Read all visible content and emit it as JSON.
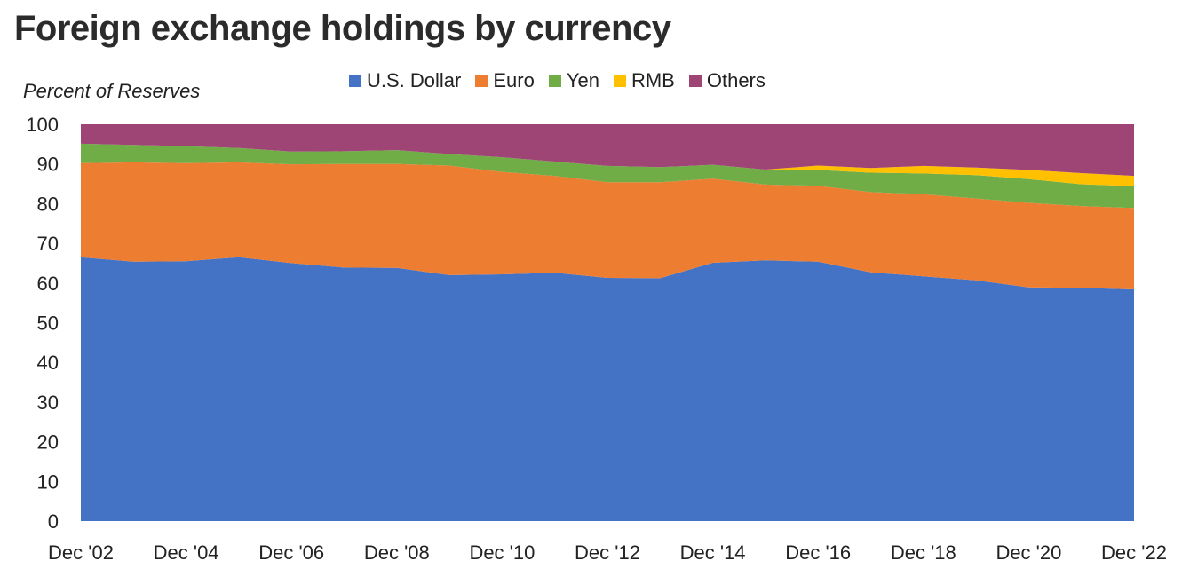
{
  "chart_data": {
    "type": "area",
    "stacked": true,
    "title": "Foreign exchange holdings by currency",
    "ylabel": "Percent of Reserves",
    "xlabel": "",
    "ylim": [
      0,
      100
    ],
    "yticks": [
      "0",
      "10",
      "20",
      "30",
      "40",
      "50",
      "60",
      "70",
      "80",
      "90",
      "100"
    ],
    "xtick_labels": [
      "Dec '02",
      "Dec '04",
      "Dec '06",
      "Dec '08",
      "Dec '10",
      "Dec '12",
      "Dec '14",
      "Dec '16",
      "Dec '18",
      "Dec '20",
      "Dec '22"
    ],
    "x": [
      "Dec '02",
      "Dec '03",
      "Dec '04",
      "Dec '05",
      "Dec '06",
      "Dec '07",
      "Dec '08",
      "Dec '09",
      "Dec '10",
      "Dec '11",
      "Dec '12",
      "Dec '13",
      "Dec '14",
      "Dec '15",
      "Dec '16",
      "Dec '17",
      "Dec '18",
      "Dec '19",
      "Dec '20",
      "Dec '21",
      "Dec '22"
    ],
    "legend_position": "top-center",
    "series": [
      {
        "name": "U.S. Dollar",
        "color": "#4472C4",
        "values": [
          66.5,
          65.4,
          65.5,
          66.5,
          65.0,
          63.9,
          63.8,
          62.0,
          62.2,
          62.6,
          61.3,
          61.2,
          65.1,
          65.7,
          65.4,
          62.7,
          61.7,
          60.7,
          58.9,
          58.8,
          58.4
        ]
      },
      {
        "name": "Euro",
        "color": "#ED7D31",
        "values": [
          23.7,
          25.0,
          24.7,
          23.9,
          24.9,
          26.1,
          26.2,
          27.6,
          25.8,
          24.4,
          24.1,
          24.2,
          21.2,
          19.1,
          19.1,
          20.2,
          20.7,
          20.6,
          21.3,
          20.6,
          20.5
        ]
      },
      {
        "name": "Yen",
        "color": "#70AD47",
        "values": [
          4.9,
          4.4,
          4.3,
          3.6,
          3.2,
          3.2,
          3.5,
          2.9,
          3.7,
          3.6,
          4.1,
          3.8,
          3.5,
          3.8,
          4.0,
          4.9,
          5.2,
          5.9,
          6.0,
          5.5,
          5.5
        ]
      },
      {
        "name": "RMB",
        "color": "#FFC000",
        "values": [
          0,
          0,
          0,
          0,
          0,
          0,
          0,
          0,
          0,
          0,
          0,
          0,
          0,
          0,
          1.1,
          1.2,
          1.9,
          1.9,
          2.3,
          2.8,
          2.6
        ]
      },
      {
        "name": "Others",
        "color": "#9E4576",
        "values": [
          4.9,
          5.2,
          5.5,
          6.0,
          6.9,
          6.8,
          6.5,
          7.5,
          8.3,
          9.4,
          10.5,
          10.8,
          10.2,
          11.4,
          10.4,
          11.0,
          10.5,
          10.9,
          11.5,
          12.3,
          13.0
        ]
      }
    ]
  }
}
